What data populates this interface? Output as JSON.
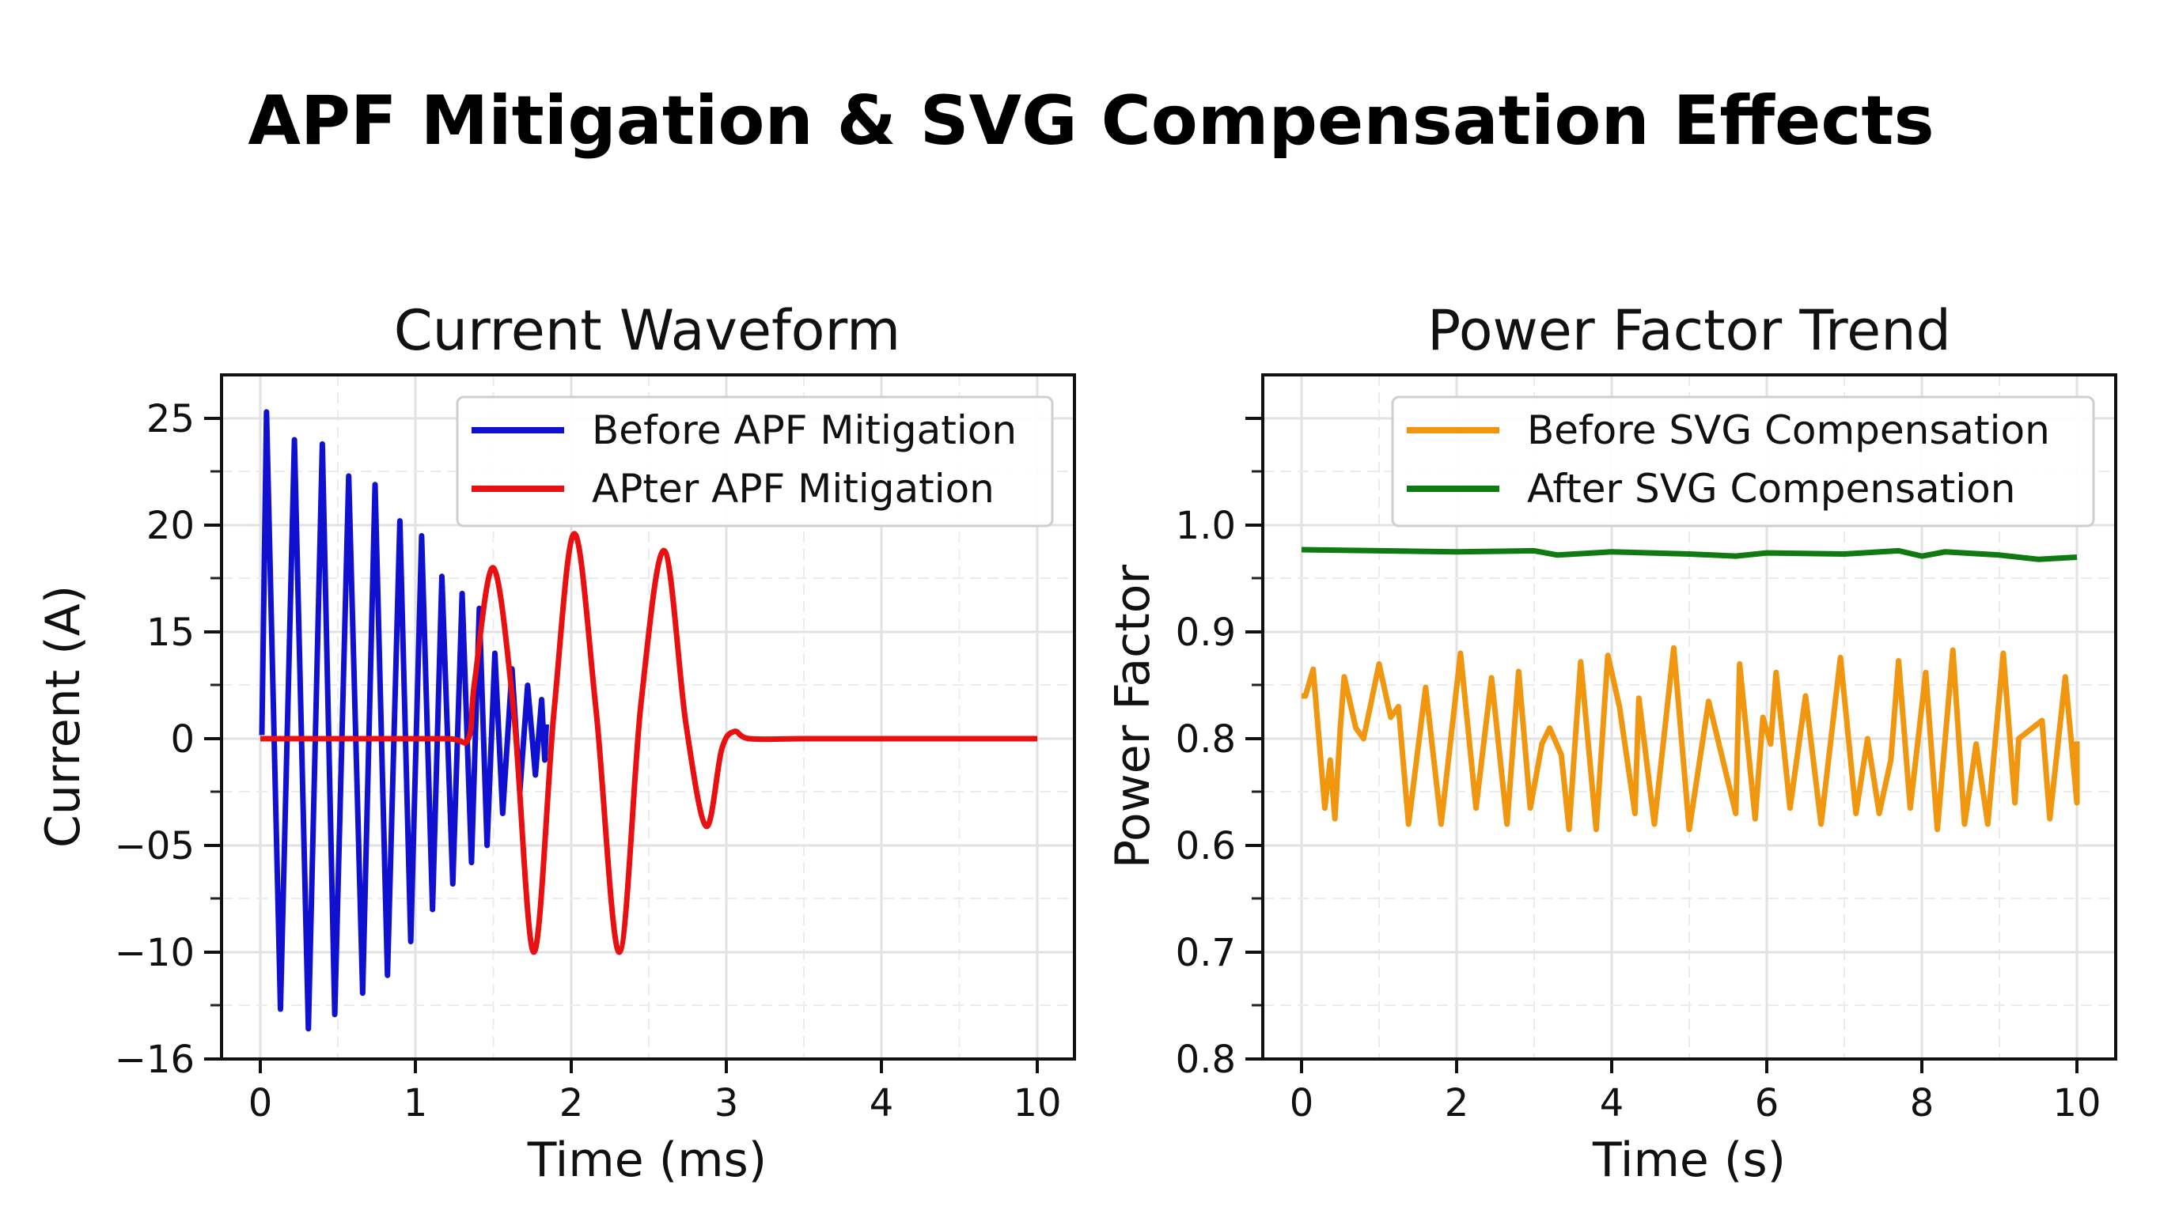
{
  "title": "APF Mitigation & SVG Compensation Effects",
  "chart_data": [
    {
      "type": "line",
      "title": "Current Waveform",
      "xlabel": "Time (ms)",
      "ylabel": "Current (A)",
      "xticks": [
        "0",
        "1",
        "2",
        "3",
        "4",
        "10"
      ],
      "xtick_values": [
        0,
        1,
        2,
        3,
        4,
        10
      ],
      "yticks": [
        "25",
        "20",
        "15",
        "0",
        "−05",
        "−10",
        "−16"
      ],
      "ytick_values": [
        25,
        20,
        15,
        0,
        -5,
        -10,
        -16
      ],
      "grid": true,
      "legend_placement": "top-right",
      "series": [
        {
          "name": "Before APF Mitigation",
          "color": "#1010d0",
          "points": [
            [
              0.01,
              0.5
            ],
            [
              0.04,
              25.3
            ],
            [
              0.13,
              -13.2
            ],
            [
              0.22,
              24
            ],
            [
              0.31,
              -14.3
            ],
            [
              0.4,
              23.8
            ],
            [
              0.48,
              -13.5
            ],
            [
              0.57,
              22.3
            ],
            [
              0.66,
              -12.3
            ],
            [
              0.74,
              21.9
            ],
            [
              0.82,
              -11.3
            ],
            [
              0.9,
              20.2
            ],
            [
              0.97,
              -9.5
            ],
            [
              1.04,
              19.5
            ],
            [
              1.11,
              -8
            ],
            [
              1.17,
              17.6
            ],
            [
              1.24,
              -6.8
            ],
            [
              1.3,
              16.8
            ],
            [
              1.36,
              -5.8
            ],
            [
              1.41,
              16.1
            ],
            [
              1.46,
              -5
            ],
            [
              1.51,
              12
            ],
            [
              1.56,
              -3.5
            ],
            [
              1.62,
              9.8
            ],
            [
              1.67,
              -2.5
            ],
            [
              1.72,
              7.5
            ],
            [
              1.77,
              -1.7
            ],
            [
              1.81,
              5.5
            ],
            [
              1.83,
              -1
            ],
            [
              1.84,
              2
            ]
          ]
        },
        {
          "name": "APter APF Mitigation",
          "color": "#e81010",
          "points": [
            [
              0,
              0
            ],
            [
              0.6,
              0
            ],
            [
              1.2,
              0
            ],
            [
              1.34,
              0
            ],
            [
              1.38,
              8
            ],
            [
              1.5,
              18
            ],
            [
              1.63,
              4
            ],
            [
              1.76,
              -10
            ],
            [
              1.89,
              4
            ],
            [
              2.02,
              19.6
            ],
            [
              2.16,
              4
            ],
            [
              2.31,
              -10
            ],
            [
              2.45,
              5
            ],
            [
              2.6,
              18.8
            ],
            [
              2.74,
              2
            ],
            [
              2.87,
              -4.1
            ],
            [
              2.97,
              -0.5
            ],
            [
              3.05,
              1
            ],
            [
              3.15,
              0
            ],
            [
              3.5,
              0
            ],
            [
              4,
              0
            ],
            [
              10,
              0
            ]
          ]
        }
      ]
    },
    {
      "type": "line",
      "title": "Power Factor Trend",
      "xlabel": "Time (s)",
      "ylabel": "Power Factor",
      "xticks": [
        "0",
        "2",
        "4",
        "6",
        "8",
        "10"
      ],
      "xtick_values": [
        0,
        2,
        4,
        6,
        8,
        10
      ],
      "yticks": [
        "",
        "1.0",
        "0.9",
        "0.8",
        "0.6",
        "0.7",
        "0.8"
      ],
      "grid": true,
      "legend_placement": "top-right",
      "series": [
        {
          "name": "Before SVG Compensation",
          "color": "#f0960f",
          "points": [
            [
              0,
              0.84
            ],
            [
              0.05,
              0.84
            ],
            [
              0.15,
              0.865
            ],
            [
              0.3,
              0.67
            ],
            [
              0.37,
              0.76
            ],
            [
              0.43,
              0.65
            ],
            [
              0.5,
              0.81
            ],
            [
              0.55,
              0.858
            ],
            [
              0.7,
              0.81
            ],
            [
              0.8,
              0.8
            ],
            [
              1.0,
              0.87
            ],
            [
              1.15,
              0.82
            ],
            [
              1.25,
              0.83
            ],
            [
              1.38,
              0.64
            ],
            [
              1.6,
              0.848
            ],
            [
              1.8,
              0.64
            ],
            [
              2.05,
              0.88
            ],
            [
              2.25,
              0.67
            ],
            [
              2.45,
              0.857
            ],
            [
              2.65,
              0.64
            ],
            [
              2.8,
              0.863
            ],
            [
              2.95,
              0.67
            ],
            [
              3.1,
              0.79
            ],
            [
              3.2,
              0.81
            ],
            [
              3.35,
              0.77
            ],
            [
              3.45,
              0.63
            ],
            [
              3.6,
              0.872
            ],
            [
              3.8,
              0.63
            ],
            [
              3.95,
              0.878
            ],
            [
              4.1,
              0.83
            ],
            [
              4.3,
              0.66
            ],
            [
              4.35,
              0.838
            ],
            [
              4.55,
              0.64
            ],
            [
              4.8,
              0.885
            ],
            [
              5.0,
              0.63
            ],
            [
              5.25,
              0.835
            ],
            [
              5.45,
              0.75
            ],
            [
              5.6,
              0.66
            ],
            [
              5.65,
              0.87
            ],
            [
              5.85,
              0.65
            ],
            [
              5.95,
              0.82
            ],
            [
              6.05,
              0.79
            ],
            [
              6.12,
              0.862
            ],
            [
              6.3,
              0.67
            ],
            [
              6.5,
              0.84
            ],
            [
              6.7,
              0.64
            ],
            [
              6.95,
              0.876
            ],
            [
              7.15,
              0.66
            ],
            [
              7.3,
              0.8
            ],
            [
              7.45,
              0.66
            ],
            [
              7.6,
              0.76
            ],
            [
              7.7,
              0.873
            ],
            [
              7.85,
              0.67
            ],
            [
              8.05,
              0.862
            ],
            [
              8.2,
              0.63
            ],
            [
              8.4,
              0.883
            ],
            [
              8.55,
              0.64
            ],
            [
              8.7,
              0.79
            ],
            [
              8.85,
              0.64
            ],
            [
              9.05,
              0.88
            ],
            [
              9.2,
              0.68
            ],
            [
              9.25,
              0.8
            ],
            [
              9.55,
              0.817
            ],
            [
              9.65,
              0.65
            ],
            [
              9.85,
              0.858
            ],
            [
              10,
              0.68
            ],
            [
              10,
              0.795
            ]
          ]
        },
        {
          "name": "After SVG Compensation",
          "color": "#0f7a0f",
          "points": [
            [
              0,
              0.977
            ],
            [
              1,
              0.976
            ],
            [
              2,
              0.975
            ],
            [
              3,
              0.976
            ],
            [
              3.3,
              0.972
            ],
            [
              4,
              0.975
            ],
            [
              5,
              0.973
            ],
            [
              5.6,
              0.971
            ],
            [
              6,
              0.974
            ],
            [
              7,
              0.973
            ],
            [
              7.7,
              0.976
            ],
            [
              8,
              0.971
            ],
            [
              8.3,
              0.975
            ],
            [
              9,
              0.972
            ],
            [
              9.5,
              0.968
            ],
            [
              10,
              0.97
            ]
          ]
        }
      ]
    }
  ]
}
